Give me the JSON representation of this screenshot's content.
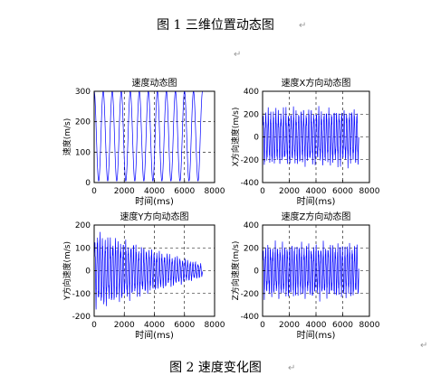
{
  "captions": {
    "fig1": "图 1  三维位置动态图",
    "fig2": "图 2  速度变化图"
  },
  "paragraph_mark": "↵",
  "colors": {
    "line": "#0000ff",
    "axis": "#000000",
    "grid": "#000000"
  },
  "chart_data": [
    {
      "type": "line",
      "title": "速度动态图",
      "xlabel": "时间(ms)",
      "ylabel": "速度(m/s)",
      "xlim": [
        0,
        8000
      ],
      "ylim": [
        0,
        300
      ],
      "xticks": [
        0,
        2000,
        4000,
        6000,
        8000
      ],
      "yticks": [
        0,
        100,
        200,
        300
      ],
      "grid": "dashed",
      "series": [
        {
          "pattern": "speed",
          "x_end": 7200,
          "cycles": 12,
          "min": 5,
          "max": 300
        }
      ]
    },
    {
      "type": "line",
      "title": "速度X方向动态图",
      "xlabel": "时间(ms)",
      "ylabel": "X方向速度(m/s)",
      "xlim": [
        0,
        8000
      ],
      "ylim": [
        -400,
        400
      ],
      "xticks": [
        0,
        2000,
        4000,
        6000,
        8000
      ],
      "yticks": [
        -400,
        -200,
        0,
        200,
        400
      ],
      "grid": "dashed",
      "series": [
        {
          "pattern": "oscillation",
          "x_end": 7200,
          "cycles": 38,
          "amplitude": 250,
          "min": -280,
          "max": 280
        }
      ]
    },
    {
      "type": "line",
      "title": "速度Y方向动态图",
      "xlabel": "时间(ms)",
      "ylabel": "Y方向速度(m/s)",
      "xlim": [
        0,
        8000
      ],
      "ylim": [
        -200,
        200
      ],
      "xticks": [
        0,
        2000,
        4000,
        6000,
        8000
      ],
      "yticks": [
        -200,
        -100,
        0,
        100,
        200
      ],
      "grid": "dashed",
      "series": [
        {
          "pattern": "decaying",
          "x_end": 7200,
          "cycles": 42,
          "amplitude": 175,
          "decay_to": 0.18,
          "min": -170,
          "max": 180
        }
      ]
    },
    {
      "type": "line",
      "title": "速度Z方向动态图",
      "xlabel": "时间(ms)",
      "ylabel": "Z方向速度(m/s)",
      "xlim": [
        0,
        8000
      ],
      "ylim": [
        -400,
        400
      ],
      "xticks": [
        0,
        2000,
        4000,
        6000,
        8000
      ],
      "yticks": [
        -400,
        -200,
        0,
        200,
        400
      ],
      "grid": "dashed",
      "series": [
        {
          "pattern": "oscillation",
          "x_end": 7200,
          "cycles": 40,
          "amplitude": 240,
          "min": -270,
          "max": 270
        }
      ]
    }
  ]
}
